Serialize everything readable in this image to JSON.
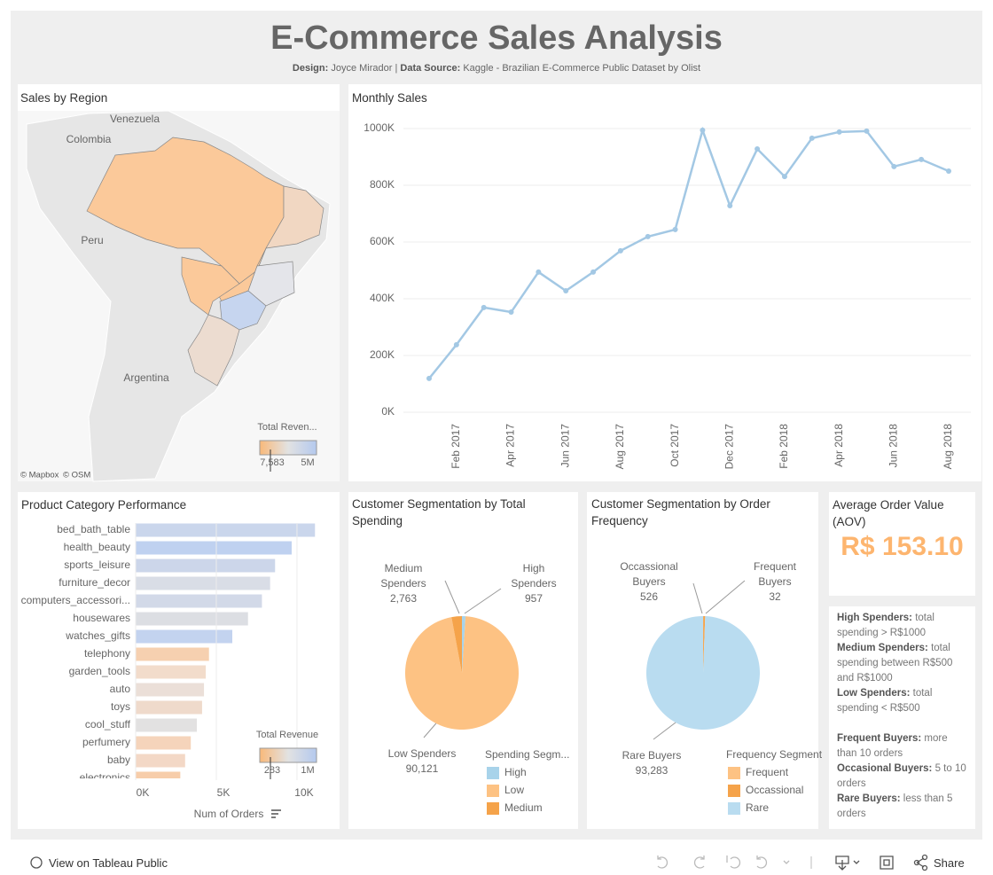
{
  "header": {
    "title": "E-Commerce Sales Analysis",
    "design_label": "Design:",
    "designer": "Joyce Mirador",
    "separator": "|",
    "source_label": "Data Source:",
    "source": "Kaggle - Brazilian E-Commerce Public Dataset by Olist"
  },
  "map": {
    "title": "Sales by Region",
    "places": [
      "Venezuela",
      "Colombia",
      "Peru",
      "Argentina"
    ],
    "legend": {
      "title": "Total Reven...",
      "min": {
        "value": 7583,
        "label": "7,583"
      },
      "max": {
        "value": 5000000,
        "label": "5M"
      }
    },
    "attribution": [
      "© Mapbox",
      "© OSM"
    ]
  },
  "chart_data": [
    {
      "type": "line",
      "title": "Monthly Sales",
      "color": "#a3c8e4",
      "grid": true,
      "categories": [
        null,
        "Feb 2017",
        null,
        "Apr 2017",
        null,
        "Jun 2017",
        null,
        "Aug 2017",
        null,
        "Oct 2017",
        null,
        "Dec 2017",
        null,
        "Feb 2018",
        null,
        "Apr 2018",
        null,
        "Jun 2018",
        null,
        "Aug 2018"
      ],
      "values": [
        119000,
        238000,
        369000,
        353000,
        494000,
        428000,
        494000,
        569000,
        619000,
        644000,
        994000,
        728000,
        928000,
        831000,
        966000,
        988000,
        991000,
        866000,
        891000,
        850000
      ],
      "ylim": [
        0,
        1050000
      ],
      "yticks": [
        {
          "value": 0,
          "label": "0K"
        },
        {
          "value": 200000,
          "label": "200K"
        },
        {
          "value": 400000,
          "label": "400K"
        },
        {
          "value": 600000,
          "label": "600K"
        },
        {
          "value": 800000,
          "label": "800K"
        },
        {
          "value": 1000000,
          "label": "1000K"
        }
      ]
    },
    {
      "type": "bar",
      "orientation": "horizontal",
      "title": "Product Category Performance",
      "grid": true,
      "categories": [
        "bed_bath_table",
        "health_beauty",
        "sports_leisure",
        "furniture_decor",
        "computers_accessori...",
        "housewares",
        "watches_gifts",
        "telephony",
        "garden_tools",
        "auto",
        "toys",
        "cool_stuff",
        "perfumery",
        "baby",
        "electronics"
      ],
      "values": [
        11115,
        9670,
        8641,
        8334,
        7827,
        6964,
        5991,
        4545,
        4347,
        4235,
        4117,
        3796,
        3419,
        3065,
        2767
      ],
      "colors": [
        "#cad6ec",
        "#bfd1f0",
        "#ccd6ea",
        "#d9dde6",
        "#d2d9e8",
        "#dcdee3",
        "#c3d3ef",
        "#f6d0b0",
        "#f2dccb",
        "#ebdfd8",
        "#efdacb",
        "#e2e1e1",
        "#f5d4bb",
        "#f3d8c6",
        "#f7cdaa"
      ],
      "xlim": [
        0,
        11650
      ],
      "xticks": [
        {
          "value": 0,
          "label": "0K"
        },
        {
          "value": 5000,
          "label": "5K"
        },
        {
          "value": 10000,
          "label": "10K"
        }
      ],
      "xlabel": "Num of Orders",
      "legend": {
        "title": "Total Revenue",
        "min": 283,
        "max": {
          "value": 1000000,
          "label": "1M"
        }
      }
    },
    {
      "type": "pie",
      "title": "Customer Segmentation by Total Spending",
      "categories": [
        "High",
        "Low",
        "Medium"
      ],
      "values": [
        957,
        90121,
        2763
      ],
      "value_labels": [
        "957",
        "90,121",
        "2,763"
      ],
      "slice_labels": [
        "High Spenders",
        "Low Spenders",
        "Medium Spenders"
      ],
      "colors": [
        "#a8d3ea",
        "#fdc283",
        "#f5a34a"
      ],
      "legend_title": "Spending Segm..."
    },
    {
      "type": "pie",
      "title": "Customer Segmentation by Order Frequency",
      "categories": [
        "Frequent",
        "Occassional",
        "Rare"
      ],
      "values": [
        32,
        526,
        93283
      ],
      "value_labels": [
        "32",
        "526",
        "93,283"
      ],
      "slice_labels": [
        "Frequent Buyers",
        "Occassional Buyers",
        "Rare Buyers"
      ],
      "colors": [
        "#fdc283",
        "#f5a34a",
        "#b9dcf0"
      ],
      "legend_title": "Frequency Segment"
    }
  ],
  "aov": {
    "title": "Average Order Value (AOV)",
    "value": "R$ 153.10"
  },
  "notes": [
    {
      "term": "High Spenders:",
      "text": "total spending > R$1000"
    },
    {
      "term": "Medium Spenders:",
      "text": "total spending  between R$500 and R$1000"
    },
    {
      "term": "Low Spenders:",
      "text": "total spending  < R$500"
    },
    {
      "term": "Frequent Buyers:",
      "text": "more than 10 orders"
    },
    {
      "term": "Occasional Buyers:",
      "text": "5 to 10 orders"
    },
    {
      "term": "Rare Buyers:",
      "text": "less than 5 orders"
    }
  ],
  "toolbar": {
    "view": "View on Tableau Public",
    "share": "Share"
  }
}
